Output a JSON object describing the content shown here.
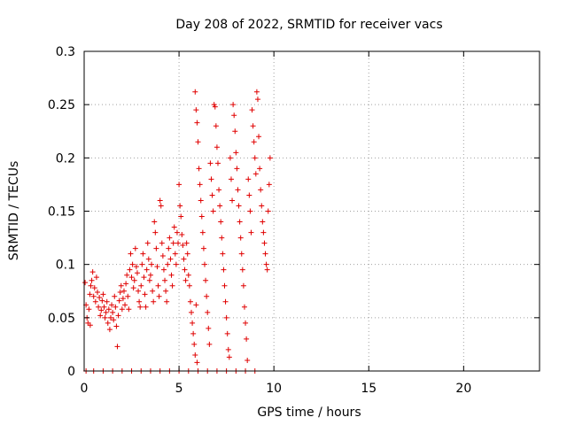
{
  "chart_data": {
    "type": "scatter",
    "title": "Day 208 of 2022, SRMTID for receiver vacs",
    "xlabel": "GPS time / hours",
    "ylabel": "SRMTID / TECUs",
    "xlim": [
      0,
      24
    ],
    "ylim": [
      0,
      0.3
    ],
    "xticks": [
      0,
      5,
      10,
      15,
      20
    ],
    "xtick_labels": [
      "0",
      "5",
      "10",
      "15",
      "20"
    ],
    "yticks": [
      0,
      0.05,
      0.1,
      0.15,
      0.2,
      0.25,
      0.3
    ],
    "ytick_labels": [
      "0",
      "0.05",
      "0.1",
      "0.15",
      "0.2",
      "0.25",
      "0.3"
    ],
    "grid": true,
    "marker": "+",
    "marker_color": "#e00000",
    "series": [
      {
        "name": "SRMTID",
        "points": [
          [
            0.05,
            0.083
          ],
          [
            0.1,
            0.062
          ],
          [
            0.15,
            0.05
          ],
          [
            0.2,
            0.045
          ],
          [
            0.25,
            0.058
          ],
          [
            0.3,
            0.072
          ],
          [
            0.32,
            0.043
          ],
          [
            0.35,
            0.08
          ],
          [
            0.4,
            0.085
          ],
          [
            0.45,
            0.093
          ],
          [
            0.5,
            0.07
          ],
          [
            0.55,
            0.078
          ],
          [
            0.6,
            0.065
          ],
          [
            0.65,
            0.088
          ],
          [
            0.7,
            0.074
          ],
          [
            0.75,
            0.06
          ],
          [
            0.8,
            0.069
          ],
          [
            0.85,
            0.052
          ],
          [
            0.9,
            0.057
          ],
          [
            0.95,
            0.066
          ],
          [
            1.0,
            0.072
          ],
          [
            1.05,
            0.06
          ],
          [
            1.1,
            0.05
          ],
          [
            1.15,
            0.055
          ],
          [
            1.2,
            0.065
          ],
          [
            1.25,
            0.045
          ],
          [
            1.3,
            0.058
          ],
          [
            1.35,
            0.039
          ],
          [
            1.4,
            0.05
          ],
          [
            1.45,
            0.062
          ],
          [
            1.5,
            0.055
          ],
          [
            1.55,
            0.048
          ],
          [
            1.6,
            0.07
          ],
          [
            1.65,
            0.06
          ],
          [
            1.7,
            0.042
          ],
          [
            1.75,
            0.023
          ],
          [
            1.8,
            0.052
          ],
          [
            1.85,
            0.066
          ],
          [
            1.9,
            0.074
          ],
          [
            1.95,
            0.08
          ],
          [
            2.0,
            0.058
          ],
          [
            2.05,
            0.068
          ],
          [
            2.1,
            0.075
          ],
          [
            2.15,
            0.062
          ],
          [
            2.2,
            0.082
          ],
          [
            2.25,
            0.09
          ],
          [
            2.3,
            0.07
          ],
          [
            2.35,
            0.058
          ],
          [
            2.4,
            0.095
          ],
          [
            2.45,
            0.11
          ],
          [
            2.5,
            0.088
          ],
          [
            2.55,
            0.1
          ],
          [
            2.6,
            0.078
          ],
          [
            2.65,
            0.085
          ],
          [
            2.7,
            0.115
          ],
          [
            2.75,
            0.098
          ],
          [
            2.8,
            0.092
          ],
          [
            2.85,
            0.075
          ],
          [
            2.9,
            0.065
          ],
          [
            2.95,
            0.06
          ],
          [
            3.0,
            0.08
          ],
          [
            3.05,
            0.1
          ],
          [
            3.1,
            0.11
          ],
          [
            3.15,
            0.088
          ],
          [
            3.2,
            0.072
          ],
          [
            3.25,
            0.06
          ],
          [
            3.3,
            0.095
          ],
          [
            3.35,
            0.12
          ],
          [
            3.4,
            0.105
          ],
          [
            3.45,
            0.085
          ],
          [
            3.5,
            0.09
          ],
          [
            3.55,
            0.1
          ],
          [
            3.6,
            0.075
          ],
          [
            3.65,
            0.065
          ],
          [
            3.7,
            0.14
          ],
          [
            3.75,
            0.13
          ],
          [
            3.8,
            0.115
          ],
          [
            3.85,
            0.098
          ],
          [
            3.9,
            0.08
          ],
          [
            3.95,
            0.07
          ],
          [
            4.0,
            0.16
          ],
          [
            4.05,
            0.155
          ],
          [
            4.1,
            0.12
          ],
          [
            4.15,
            0.108
          ],
          [
            4.2,
            0.095
          ],
          [
            4.25,
            0.085
          ],
          [
            4.3,
            0.075
          ],
          [
            4.35,
            0.065
          ],
          [
            4.4,
            0.1
          ],
          [
            4.45,
            0.115
          ],
          [
            4.5,
            0.125
          ],
          [
            4.55,
            0.105
          ],
          [
            4.6,
            0.09
          ],
          [
            4.65,
            0.08
          ],
          [
            4.7,
            0.12
          ],
          [
            4.75,
            0.135
          ],
          [
            4.8,
            0.11
          ],
          [
            4.85,
            0.1
          ],
          [
            4.9,
            0.13
          ],
          [
            4.95,
            0.12
          ],
          [
            5.0,
            0.175
          ],
          [
            5.05,
            0.155
          ],
          [
            5.1,
            0.145
          ],
          [
            5.15,
            0.128
          ],
          [
            5.2,
            0.118
          ],
          [
            5.25,
            0.105
          ],
          [
            5.3,
            0.095
          ],
          [
            5.35,
            0.085
          ],
          [
            5.4,
            0.12
          ],
          [
            5.45,
            0.11
          ],
          [
            5.5,
            0.09
          ],
          [
            5.55,
            0.08
          ],
          [
            5.6,
            0.065
          ],
          [
            5.65,
            0.055
          ],
          [
            5.7,
            0.045
          ],
          [
            5.75,
            0.035
          ],
          [
            5.8,
            0.025
          ],
          [
            5.85,
            0.015
          ],
          [
            5.9,
            0.062
          ],
          [
            5.95,
            0.008
          ],
          [
            5.85,
            0.262
          ],
          [
            5.9,
            0.245
          ],
          [
            5.95,
            0.233
          ],
          [
            6.0,
            0.215
          ],
          [
            6.05,
            0.19
          ],
          [
            6.1,
            0.175
          ],
          [
            6.15,
            0.16
          ],
          [
            6.2,
            0.145
          ],
          [
            6.25,
            0.13
          ],
          [
            6.3,
            0.115
          ],
          [
            6.35,
            0.1
          ],
          [
            6.4,
            0.085
          ],
          [
            6.45,
            0.07
          ],
          [
            6.5,
            0.055
          ],
          [
            6.55,
            0.04
          ],
          [
            6.6,
            0.025
          ],
          [
            6.65,
            0.195
          ],
          [
            6.7,
            0.18
          ],
          [
            6.75,
            0.165
          ],
          [
            6.8,
            0.15
          ],
          [
            6.85,
            0.25
          ],
          [
            6.9,
            0.248
          ],
          [
            6.95,
            0.23
          ],
          [
            7.0,
            0.21
          ],
          [
            7.05,
            0.195
          ],
          [
            7.1,
            0.17
          ],
          [
            7.15,
            0.155
          ],
          [
            7.2,
            0.14
          ],
          [
            7.25,
            0.125
          ],
          [
            7.3,
            0.11
          ],
          [
            7.35,
            0.095
          ],
          [
            7.4,
            0.08
          ],
          [
            7.45,
            0.065
          ],
          [
            7.5,
            0.05
          ],
          [
            7.55,
            0.035
          ],
          [
            7.6,
            0.02
          ],
          [
            7.65,
            0.013
          ],
          [
            7.7,
            0.2
          ],
          [
            7.75,
            0.18
          ],
          [
            7.8,
            0.16
          ],
          [
            7.85,
            0.25
          ],
          [
            7.9,
            0.24
          ],
          [
            7.95,
            0.225
          ],
          [
            8.0,
            0.205
          ],
          [
            8.05,
            0.19
          ],
          [
            8.1,
            0.17
          ],
          [
            8.15,
            0.155
          ],
          [
            8.2,
            0.14
          ],
          [
            8.25,
            0.125
          ],
          [
            8.3,
            0.11
          ],
          [
            8.35,
            0.095
          ],
          [
            8.4,
            0.08
          ],
          [
            8.45,
            0.06
          ],
          [
            8.5,
            0.045
          ],
          [
            8.55,
            0.03
          ],
          [
            8.6,
            0.01
          ],
          [
            8.65,
            0.18
          ],
          [
            8.7,
            0.165
          ],
          [
            8.75,
            0.15
          ],
          [
            8.8,
            0.13
          ],
          [
            8.85,
            0.245
          ],
          [
            8.9,
            0.23
          ],
          [
            8.95,
            0.215
          ],
          [
            9.0,
            0.2
          ],
          [
            9.05,
            0.185
          ],
          [
            9.1,
            0.262
          ],
          [
            9.15,
            0.255
          ],
          [
            9.2,
            0.22
          ],
          [
            9.25,
            0.19
          ],
          [
            9.3,
            0.17
          ],
          [
            9.35,
            0.155
          ],
          [
            9.4,
            0.14
          ],
          [
            9.45,
            0.13
          ],
          [
            9.5,
            0.12
          ],
          [
            9.55,
            0.11
          ],
          [
            9.6,
            0.1
          ],
          [
            9.65,
            0.095
          ],
          [
            9.7,
            0.15
          ],
          [
            9.75,
            0.175
          ],
          [
            9.8,
            0.2
          ],
          [
            0.1,
            0.0
          ],
          [
            0.5,
            0.0
          ],
          [
            1.0,
            0.0
          ],
          [
            1.5,
            0.0
          ],
          [
            2.0,
            0.0
          ],
          [
            2.5,
            0.0
          ],
          [
            3.0,
            0.0
          ],
          [
            3.5,
            0.0
          ],
          [
            4.0,
            0.0
          ],
          [
            4.5,
            0.0
          ],
          [
            5.0,
            0.0
          ],
          [
            5.5,
            0.0
          ],
          [
            6.0,
            0.0
          ],
          [
            6.5,
            0.0
          ],
          [
            7.0,
            0.0
          ],
          [
            7.5,
            0.0
          ],
          [
            8.0,
            0.0
          ],
          [
            8.5,
            0.0
          ],
          [
            9.0,
            0.0
          ]
        ]
      }
    ]
  }
}
